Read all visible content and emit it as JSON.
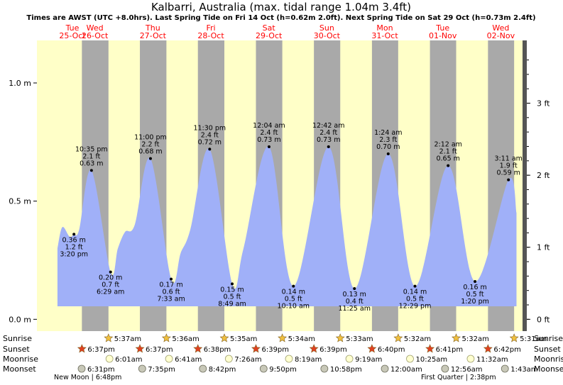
{
  "header": {
    "title": "Kalbarri, Australia (max. tidal range 1.04m 3.4ft)",
    "subtitle": "Times are AWST (UTC +8.0hrs). Last Spring Tide on Fri 14 Oct (h=0.62m 2.0ft). Next Spring Tide on Sat 29 Oct (h=0.73m 2.4ft)"
  },
  "colors": {
    "day": "#ffffc8",
    "night": "#a9a9a9",
    "tide": "#a0b0f8",
    "date_text": "#ff0000",
    "sun_icon": "#f0c040",
    "sunset_icon": "#e04020",
    "moonrise_icon": "#ffffd0",
    "moonset_icon": "#c8c8b8"
  },
  "days": [
    {
      "day": "Tue",
      "date": "25-Oct"
    },
    {
      "day": "Wed",
      "date": "26-Oct"
    },
    {
      "day": "Thu",
      "date": "27-Oct"
    },
    {
      "day": "Fri",
      "date": "28-Oct"
    },
    {
      "day": "Sat",
      "date": "29-Oct"
    },
    {
      "day": "Sun",
      "date": "30-Oct"
    },
    {
      "day": "Mon",
      "date": "31-Oct"
    },
    {
      "day": "Tue",
      "date": "01-Nov"
    },
    {
      "day": "Wed",
      "date": "02-Nov"
    }
  ],
  "chart_data": {
    "type": "area",
    "x_unit": "hours from 25-Oct 00:00 AWST",
    "ylim_m": [
      -0.05,
      1.18
    ],
    "yticks_m": [
      0.0,
      0.5,
      1.0
    ],
    "ytick_labels_m": [
      "0.0 m",
      "0.5 m",
      "1.0 m"
    ],
    "yticks_ft": [
      0,
      1,
      2,
      3
    ],
    "ytick_labels_ft": [
      "0 ft",
      "1 ft",
      "2 ft",
      "3 ft"
    ],
    "series": [
      {
        "points": [
          {
            "t": 8.5,
            "h": 0.3
          },
          {
            "t": 10.5,
            "h": 0.39
          },
          {
            "t": 13.5,
            "h": 0.35
          },
          {
            "t": 15.33,
            "h": 0.36
          },
          {
            "t": 17.5,
            "h": 0.38
          },
          {
            "t": 22.58,
            "h": 0.63
          },
          {
            "t": 30.48,
            "h": 0.2
          },
          {
            "t": 33.5,
            "h": 0.3
          },
          {
            "t": 36.5,
            "h": 0.37
          },
          {
            "t": 40.5,
            "h": 0.4
          },
          {
            "t": 47.0,
            "h": 0.68
          },
          {
            "t": 55.55,
            "h": 0.17
          },
          {
            "t": 59.5,
            "h": 0.28
          },
          {
            "t": 63.5,
            "h": 0.38
          },
          {
            "t": 71.5,
            "h": 0.72
          },
          {
            "t": 80.82,
            "h": 0.15
          },
          {
            "t": 85.5,
            "h": 0.3
          },
          {
            "t": 96.07,
            "h": 0.73
          },
          {
            "t": 106.17,
            "h": 0.14
          },
          {
            "t": 120.7,
            "h": 0.73
          },
          {
            "t": 131.42,
            "h": 0.13
          },
          {
            "t": 145.4,
            "h": 0.7
          },
          {
            "t": 156.48,
            "h": 0.14
          },
          {
            "t": 170.2,
            "h": 0.65
          },
          {
            "t": 181.33,
            "h": 0.16
          },
          {
            "t": 195.18,
            "h": 0.59
          },
          {
            "t": 198.5,
            "h": 0.45
          }
        ]
      }
    ],
    "tide_labels": [
      {
        "t": 15.33,
        "h": 0.36,
        "type": "low",
        "m": "0.36 m",
        "ft": "1.2 ft",
        "time": "3:20 pm"
      },
      {
        "t": 22.58,
        "h": 0.63,
        "type": "high",
        "m": "0.63 m",
        "ft": "2.1 ft",
        "time": "10:35 pm"
      },
      {
        "t": 30.48,
        "h": 0.2,
        "type": "low",
        "m": "0.20 m",
        "ft": "0.7 ft",
        "time": "6:29 am"
      },
      {
        "t": 47.0,
        "h": 0.68,
        "type": "high",
        "m": "0.68 m",
        "ft": "2.2 ft",
        "time": "11:00 pm"
      },
      {
        "t": 55.55,
        "h": 0.17,
        "type": "low",
        "m": "0.17 m",
        "ft": "0.6 ft",
        "time": "7:33 am"
      },
      {
        "t": 71.5,
        "h": 0.72,
        "type": "high",
        "m": "0.72 m",
        "ft": "2.4 ft",
        "time": "11:30 pm"
      },
      {
        "t": 80.82,
        "h": 0.15,
        "type": "low",
        "m": "0.15 m",
        "ft": "0.5 ft",
        "time": "8:49 am"
      },
      {
        "t": 96.07,
        "h": 0.73,
        "type": "high",
        "m": "0.73 m",
        "ft": "2.4 ft",
        "time": "12:04 am"
      },
      {
        "t": 106.17,
        "h": 0.14,
        "type": "low",
        "m": "0.14 m",
        "ft": "0.5 ft",
        "time": "10:10 am"
      },
      {
        "t": 120.7,
        "h": 0.73,
        "type": "high",
        "m": "0.73 m",
        "ft": "2.4 ft",
        "time": "12:42 am"
      },
      {
        "t": 131.42,
        "h": 0.13,
        "type": "low",
        "m": "0.13 m",
        "ft": "0.4 ft",
        "time": "11:25 am"
      },
      {
        "t": 145.4,
        "h": 0.7,
        "type": "high",
        "m": "0.70 m",
        "ft": "2.3 ft",
        "time": "1:24 am"
      },
      {
        "t": 156.48,
        "h": 0.14,
        "type": "low",
        "m": "0.14 m",
        "ft": "0.5 ft",
        "time": "12:29 pm"
      },
      {
        "t": 170.2,
        "h": 0.65,
        "type": "high",
        "m": "0.65 m",
        "ft": "2.1 ft",
        "time": "2:12 am"
      },
      {
        "t": 181.33,
        "h": 0.16,
        "type": "low",
        "m": "0.16 m",
        "ft": "0.5 ft",
        "time": "1:20 pm"
      },
      {
        "t": 195.18,
        "h": 0.59,
        "type": "high",
        "m": "0.59 m",
        "ft": "1.9 ft",
        "time": "3:11 am"
      }
    ],
    "sunrise": [
      {
        "t": 29.62,
        "label": "5:37am"
      },
      {
        "t": 53.6,
        "label": "5:36am"
      },
      {
        "t": 77.58,
        "label": "5:35am"
      },
      {
        "t": 101.57,
        "label": "5:34am"
      },
      {
        "t": 125.55,
        "label": "5:33am"
      },
      {
        "t": 149.53,
        "label": "5:32am"
      },
      {
        "t": 173.53,
        "label": "5:32am"
      },
      {
        "t": 197.52,
        "label": "5:31am"
      }
    ],
    "sunset": [
      {
        "t": 18.62,
        "label": "6:37pm"
      },
      {
        "t": 42.62,
        "label": "6:37pm"
      },
      {
        "t": 66.63,
        "label": "6:38pm"
      },
      {
        "t": 90.65,
        "label": "6:39pm"
      },
      {
        "t": 114.65,
        "label": "6:39pm"
      },
      {
        "t": 138.67,
        "label": "6:40pm"
      },
      {
        "t": 162.68,
        "label": "6:41pm"
      },
      {
        "t": 186.7,
        "label": "6:42pm"
      }
    ],
    "moonrise": [
      {
        "t": 30.02,
        "label": "6:01am"
      },
      {
        "t": 54.68,
        "label": "6:41am"
      },
      {
        "t": 79.43,
        "label": "7:26am"
      },
      {
        "t": 104.32,
        "label": "8:19am"
      },
      {
        "t": 129.32,
        "label": "9:19am"
      },
      {
        "t": 154.42,
        "label": "10:25am"
      },
      {
        "t": 179.53,
        "label": "11:32am"
      }
    ],
    "moonset": [
      {
        "t": 18.52,
        "label": "6:31pm"
      },
      {
        "t": 43.58,
        "label": "7:35pm"
      },
      {
        "t": 68.7,
        "label": "8:42pm"
      },
      {
        "t": 93.83,
        "label": "9:50pm"
      },
      {
        "t": 118.97,
        "label": "10:58pm"
      },
      {
        "t": 144.0,
        "label": "12:00am"
      },
      {
        "t": 168.93,
        "label": "12:56am"
      },
      {
        "t": 193.72,
        "label": "1:43am"
      }
    ],
    "row_labels": {
      "sunrise": "Sunrise",
      "sunset": "Sunset",
      "moonrise": "Moonrise",
      "moonset": "Moonset"
    },
    "moon_phases": [
      {
        "label": "New Moon | 6:48pm"
      },
      {
        "label": "First Quarter | 2:38pm"
      }
    ]
  }
}
